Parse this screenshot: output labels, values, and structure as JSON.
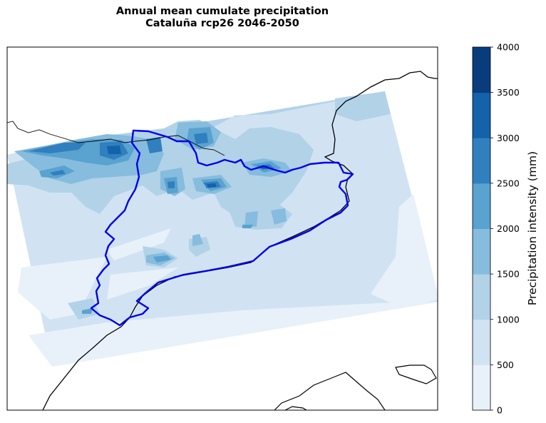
{
  "title": {
    "line1": "Annual mean cumulate precipitation",
    "line2": "Cataluña rcp26 2046-2050"
  },
  "colorbar": {
    "label": "Precipitation intensity (mm)",
    "ticks": [
      "0",
      "500",
      "1000",
      "1500",
      "2000",
      "2500",
      "3000",
      "3500",
      "4000"
    ],
    "levels": [
      0,
      500,
      1000,
      1500,
      2000,
      2500,
      3000,
      3500,
      4000
    ],
    "colors": [
      "#e8f1fa",
      "#d1e3f3",
      "#b2d2e8",
      "#86bcdd",
      "#5aa2cf",
      "#3080c0",
      "#1362aa",
      "#083c7d"
    ]
  },
  "map_colors": {
    "region_outline": "#0000ee",
    "coastline": "#000000",
    "background": "#ffffff"
  }
}
